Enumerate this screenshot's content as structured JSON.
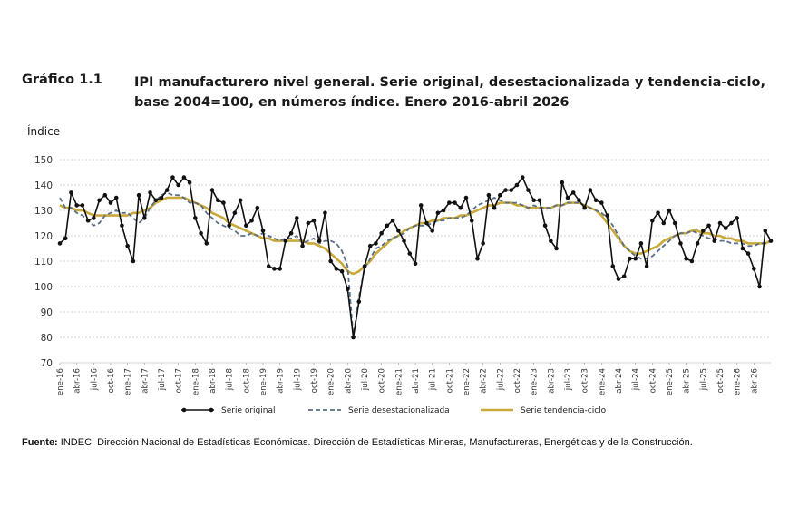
{
  "header": {
    "number": "Gráfico 1.1",
    "title": "IPI manufacturero nivel general. Serie original, desestacionalizada y tendencia-ciclo, base 2004=100, en números índice. Enero 2016-abril 2026"
  },
  "source": {
    "label": "Fuente:",
    "text": " INDEC, Dirección Nacional de Estadísticas Económicas. Dirección de Estadísticas Mineras, Manufactureras, Energéticas y de la Construcción."
  },
  "chart_data": {
    "type": "line",
    "ylabel": "Índice",
    "ylim": [
      70,
      150
    ],
    "yticks": [
      70,
      80,
      90,
      100,
      110,
      120,
      130,
      140,
      150
    ],
    "grid": true,
    "legend_position": "bottom",
    "x_tick_labels": [
      "ene-16",
      "abr-16",
      "jul-16",
      "oct-16",
      "ene-17",
      "abr-17",
      "jul-17",
      "oct-17",
      "ene-18",
      "abr-18",
      "jul-18",
      "oct-18",
      "ene-19",
      "abr-19",
      "jul-19",
      "oct-19",
      "ene-20",
      "abr-20",
      "jul-20",
      "oct-20",
      "ene-21",
      "abr-21",
      "jul-21",
      "oct-21",
      "ene-22",
      "abr-22",
      "jul-22",
      "oct-22",
      "ene-23",
      "abr-23",
      "jul-23",
      "oct-23",
      "ene-24",
      "abr-24",
      "jul-24",
      "oct-24",
      "ene-25",
      "abr-25",
      "jul-25",
      "oct-25",
      "ene-26",
      "abr-26"
    ],
    "series": [
      {
        "name": "Serie original",
        "color": "#111111",
        "style": "solid-marker",
        "values": [
          117,
          119,
          137,
          132,
          132,
          126,
          127,
          134,
          136,
          133,
          135,
          124,
          116,
          110,
          136,
          127,
          137,
          134,
          135,
          138,
          143,
          140,
          143,
          141,
          127,
          121,
          117,
          138,
          134,
          133,
          124,
          129,
          134,
          124,
          126,
          131,
          122,
          108,
          107,
          107,
          118,
          121,
          127,
          116,
          125,
          126,
          118,
          129,
          110,
          107,
          106,
          99,
          80,
          94,
          108,
          116,
          117,
          121,
          124,
          126,
          122,
          118,
          113,
          109,
          132,
          125,
          122,
          129,
          130,
          133,
          133,
          131,
          135,
          126,
          111,
          117,
          136,
          131,
          136,
          138,
          138,
          140,
          143,
          138,
          134,
          134,
          124,
          118,
          115,
          141,
          135,
          137,
          134,
          131,
          138,
          134,
          133,
          128,
          108,
          103,
          104,
          111,
          111,
          117,
          108,
          126,
          129,
          125,
          130,
          125,
          117,
          111,
          110,
          117,
          122,
          124,
          118,
          125,
          123,
          125,
          127,
          115,
          113,
          107,
          100,
          122,
          118
        ],
        "_note": ""
      },
      {
        "name": "Serie desestacionalizada",
        "color": "#5a6f88",
        "style": "dashed",
        "values": [
          135,
          131,
          131,
          129,
          128,
          126,
          124,
          125,
          128,
          129,
          130,
          129,
          129,
          127,
          125,
          127,
          131,
          134,
          136,
          137,
          136,
          136,
          135,
          133,
          133,
          132,
          129,
          127,
          125,
          124,
          123,
          122,
          120,
          120,
          121,
          120,
          121,
          120,
          119,
          118,
          119,
          119,
          120,
          117,
          118,
          119,
          117,
          118,
          118,
          117,
          114,
          108,
          80,
          96,
          107,
          111,
          115,
          116,
          118,
          119,
          120,
          121,
          123,
          124,
          124,
          124,
          125,
          126,
          126,
          127,
          127,
          127,
          128,
          130,
          132,
          133,
          134,
          135,
          134,
          133,
          133,
          133,
          132,
          131,
          132,
          131,
          131,
          131,
          132,
          132,
          133,
          133,
          133,
          132,
          131,
          130,
          129,
          127,
          124,
          120,
          116,
          114,
          112,
          111,
          111,
          112,
          114,
          116,
          118,
          120,
          121,
          121,
          122,
          121,
          120,
          119,
          119,
          118,
          118,
          117,
          117,
          117,
          116,
          116,
          117,
          117,
          118
        ]
      },
      {
        "name": "Serie tendencia-ciclo",
        "color": "#c9a93a",
        "style": "solid",
        "values": [
          132,
          131,
          131,
          130,
          130,
          129,
          128,
          128,
          128,
          128,
          128,
          128,
          128,
          129,
          129,
          130,
          131,
          133,
          134,
          135,
          135,
          135,
          135,
          134,
          133,
          132,
          131,
          129,
          128,
          127,
          125,
          124,
          123,
          122,
          121,
          120,
          119,
          119,
          118,
          118,
          118,
          118,
          118,
          118,
          117,
          117,
          116,
          115,
          113,
          111,
          109,
          106,
          105,
          106,
          108,
          110,
          113,
          115,
          117,
          119,
          120,
          122,
          123,
          124,
          125,
          125,
          126,
          126,
          127,
          127,
          127,
          128,
          128,
          129,
          130,
          131,
          132,
          132,
          133,
          133,
          133,
          132,
          132,
          131,
          131,
          131,
          131,
          131,
          132,
          132,
          133,
          133,
          133,
          132,
          131,
          130,
          128,
          125,
          122,
          119,
          116,
          114,
          113,
          113,
          114,
          115,
          116,
          118,
          119,
          120,
          121,
          121,
          122,
          122,
          121,
          121,
          120,
          120,
          119,
          119,
          118,
          118,
          117,
          117,
          117,
          117,
          118
        ]
      }
    ]
  }
}
